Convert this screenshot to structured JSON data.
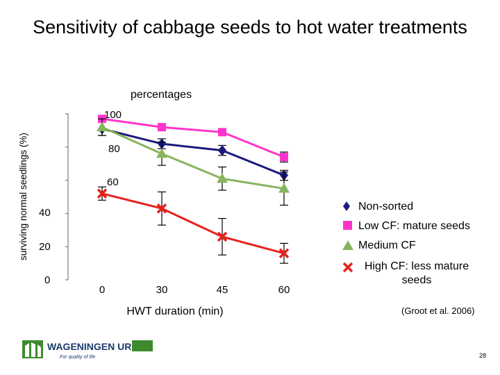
{
  "chart_data": {
    "type": "line",
    "title": "Sensitivity of cabbage seeds to hot water treatments",
    "subtitle": "percentages",
    "ylabel": "surviving normal seedlings (%)",
    "xlabel": "HWT duration (min)",
    "categories": [
      "0",
      "30",
      "45",
      "60"
    ],
    "yticks": [
      "0",
      "20",
      "40",
      "60",
      "80",
      "100"
    ],
    "ylim": [
      0,
      100
    ],
    "series": [
      {
        "name": "Non-sorted",
        "marker": "diamond",
        "color": "#1a1a7e",
        "values": [
          91,
          82,
          78,
          63
        ],
        "err": [
          4,
          3,
          3,
          3
        ]
      },
      {
        "name": "Low CF: mature seeds",
        "marker": "square",
        "color": "#ff33cc",
        "values": [
          97,
          92,
          89,
          74
        ],
        "err": [
          2,
          2,
          2,
          3
        ]
      },
      {
        "name": "Medium CF",
        "marker": "triangle",
        "color": "#88b45e",
        "values": [
          92,
          76,
          61,
          55
        ],
        "err": [
          5,
          7,
          7,
          10
        ]
      },
      {
        "name": "High CF: less mature seeds",
        "marker": "x",
        "color": "#e8211b",
        "values": [
          52,
          43,
          26,
          16
        ],
        "err": [
          4,
          10,
          11,
          6
        ]
      }
    ],
    "legend_position": "right"
  },
  "credit": "(Groot et al. 2006)",
  "logo": {
    "name": "WAGENINGEN UR",
    "tagline": "For quality of life"
  },
  "page_number": "28",
  "colors": {
    "logo_green": "#3d8b2e",
    "logo_blue": "#1b3a6b"
  }
}
